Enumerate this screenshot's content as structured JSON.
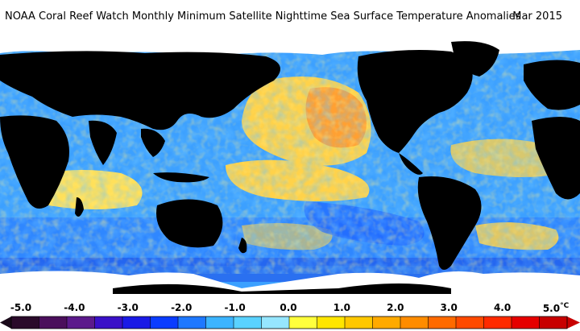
{
  "header": {
    "title": "NOAA Coral Reef Watch Monthly Minimum Satellite Nighttime Sea Surface Temperature Anomalies",
    "date": "Mar 2015"
  },
  "legend": {
    "ticks": [
      "-5.0",
      "-4.0",
      "-3.0",
      "-2.0",
      "-1.0",
      "0.0",
      "1.0",
      "2.0",
      "3.0",
      "4.0",
      "5.0"
    ],
    "unit": "°C",
    "colors": [
      "#2a0a2a",
      "#4b0f5c",
      "#5c1a8c",
      "#3a10c8",
      "#1a1ae6",
      "#0a3cff",
      "#1e78ff",
      "#3cb4ff",
      "#5ad2ff",
      "#96e6ff",
      "#ffff3c",
      "#ffe600",
      "#ffc800",
      "#ffaa00",
      "#ff8c00",
      "#ff6a00",
      "#ff4a00",
      "#ff2a00",
      "#e60000",
      "#c80000"
    ]
  },
  "map": {
    "land_color": "#000000",
    "ice_color": "#ffffff",
    "ocean_base": "#3ca0ff",
    "warm_color": "#ffd24a",
    "hot_color": "#ffa032",
    "cool_color": "#1e64ff"
  }
}
